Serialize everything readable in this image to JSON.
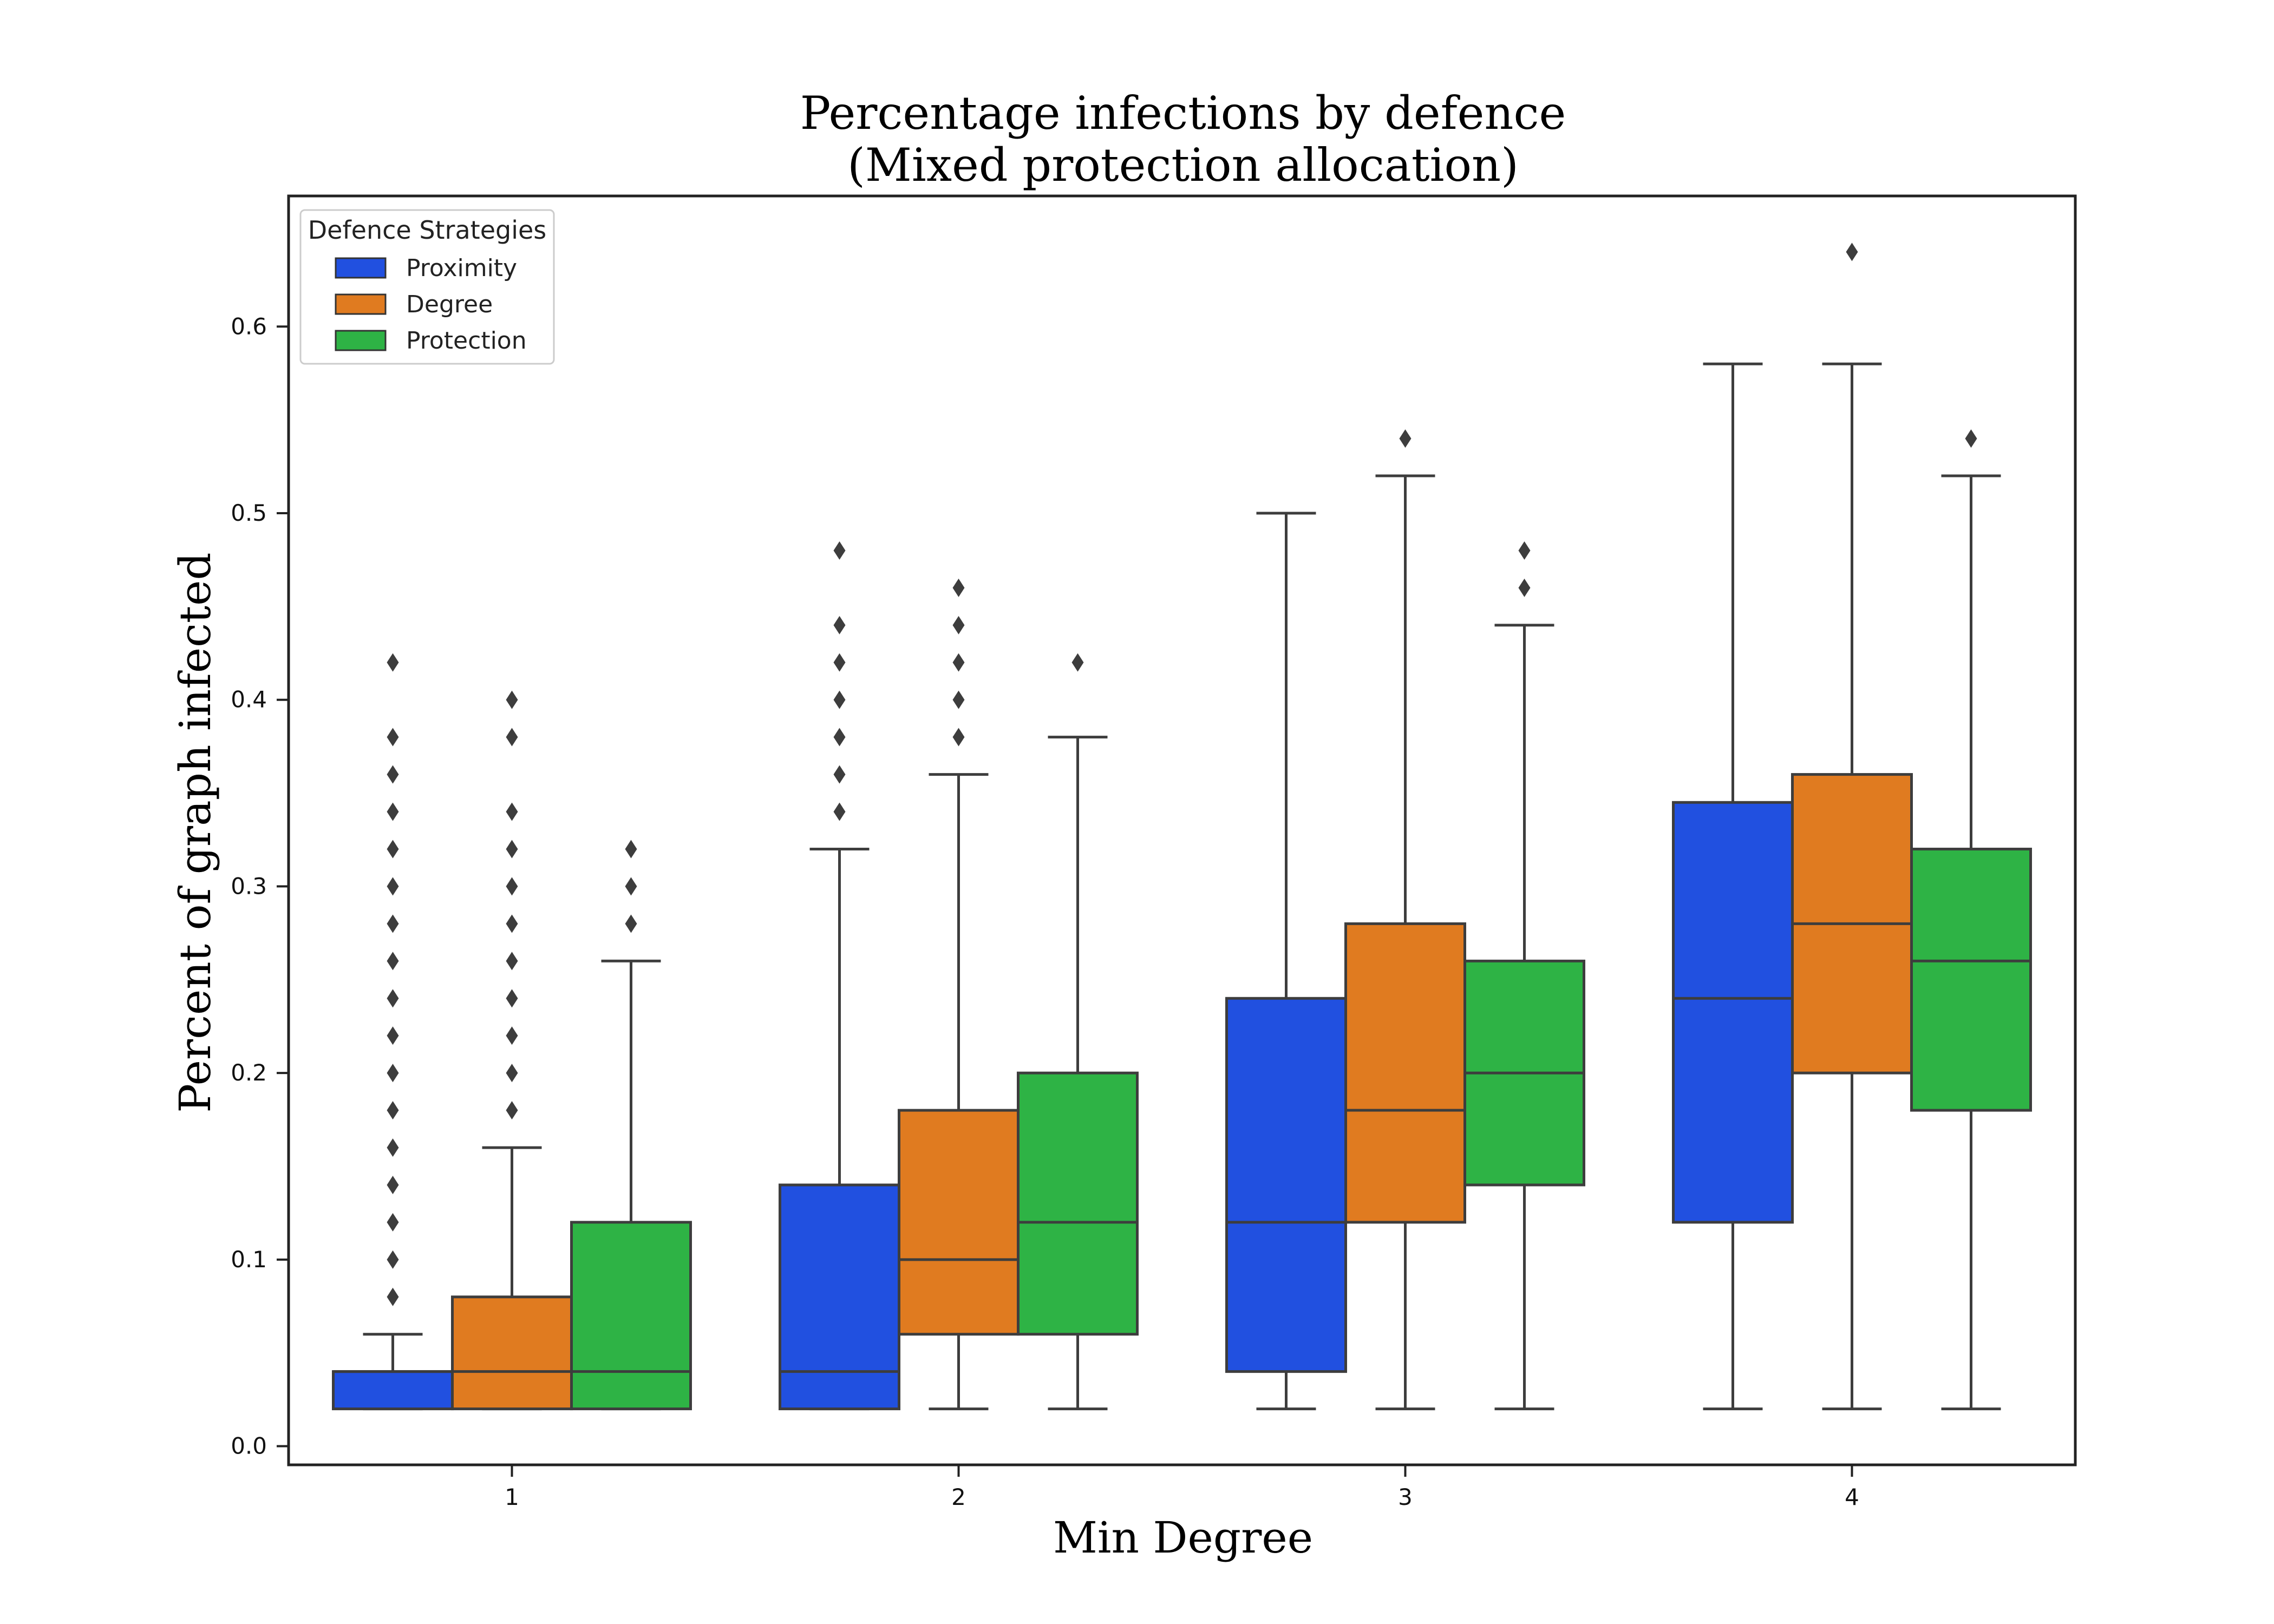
{
  "chart_data": {
    "type": "box",
    "title": [
      "Percentage infections by defence",
      "(Mixed protection allocation)"
    ],
    "xlabel": "Min Degree",
    "ylabel": "Percent of graph infected",
    "categories": [
      "1",
      "2",
      "3",
      "4"
    ],
    "ylim": [
      -0.01,
      0.67
    ],
    "yticks": [
      "0.0",
      "0.1",
      "0.2",
      "0.3",
      "0.4",
      "0.5",
      "0.6"
    ],
    "grid": false,
    "legend": {
      "title": "Defence Strategies",
      "placement": "top-left"
    },
    "series": [
      {
        "name": "Proximity",
        "color": "#2150e0",
        "boxes": [
          {
            "whislo": 0.02,
            "q1": 0.02,
            "med": 0.04,
            "q3": 0.04,
            "whishi": 0.06,
            "fliers": [
              0.08,
              0.1,
              0.12,
              0.14,
              0.16,
              0.18,
              0.2,
              0.22,
              0.24,
              0.26,
              0.28,
              0.3,
              0.32,
              0.34,
              0.36,
              0.38,
              0.42
            ]
          },
          {
            "whislo": 0.02,
            "q1": 0.02,
            "med": 0.04,
            "q3": 0.14,
            "whishi": 0.32,
            "fliers": [
              0.34,
              0.36,
              0.38,
              0.4,
              0.42,
              0.44,
              0.48
            ]
          },
          {
            "whislo": 0.02,
            "q1": 0.04,
            "med": 0.12,
            "q3": 0.24,
            "whishi": 0.5,
            "fliers": []
          },
          {
            "whislo": 0.02,
            "q1": 0.12,
            "med": 0.24,
            "q3": 0.345,
            "whishi": 0.58,
            "fliers": []
          }
        ]
      },
      {
        "name": "Degree",
        "color": "#e07b20",
        "boxes": [
          {
            "whislo": 0.02,
            "q1": 0.02,
            "med": 0.04,
            "q3": 0.08,
            "whishi": 0.16,
            "fliers": [
              0.18,
              0.2,
              0.22,
              0.24,
              0.26,
              0.28,
              0.3,
              0.32,
              0.34,
              0.38,
              0.4
            ]
          },
          {
            "whislo": 0.02,
            "q1": 0.06,
            "med": 0.1,
            "q3": 0.18,
            "whishi": 0.36,
            "fliers": [
              0.38,
              0.4,
              0.42,
              0.44,
              0.46
            ]
          },
          {
            "whislo": 0.02,
            "q1": 0.12,
            "med": 0.18,
            "q3": 0.28,
            "whishi": 0.52,
            "fliers": [
              0.54
            ]
          },
          {
            "whislo": 0.02,
            "q1": 0.2,
            "med": 0.28,
            "q3": 0.36,
            "whishi": 0.58,
            "fliers": [
              0.64
            ]
          }
        ]
      },
      {
        "name": "Protection",
        "color": "#2eb345",
        "boxes": [
          {
            "whislo": 0.02,
            "q1": 0.02,
            "med": 0.04,
            "q3": 0.12,
            "whishi": 0.26,
            "fliers": [
              0.28,
              0.3,
              0.32
            ]
          },
          {
            "whislo": 0.02,
            "q1": 0.06,
            "med": 0.12,
            "q3": 0.2,
            "whishi": 0.38,
            "fliers": [
              0.42
            ]
          },
          {
            "whislo": 0.02,
            "q1": 0.14,
            "med": 0.2,
            "q3": 0.26,
            "whishi": 0.44,
            "fliers": [
              0.46,
              0.48
            ]
          },
          {
            "whislo": 0.02,
            "q1": 0.18,
            "med": 0.26,
            "q3": 0.32,
            "whishi": 0.52,
            "fliers": [
              0.54
            ]
          }
        ]
      }
    ]
  }
}
